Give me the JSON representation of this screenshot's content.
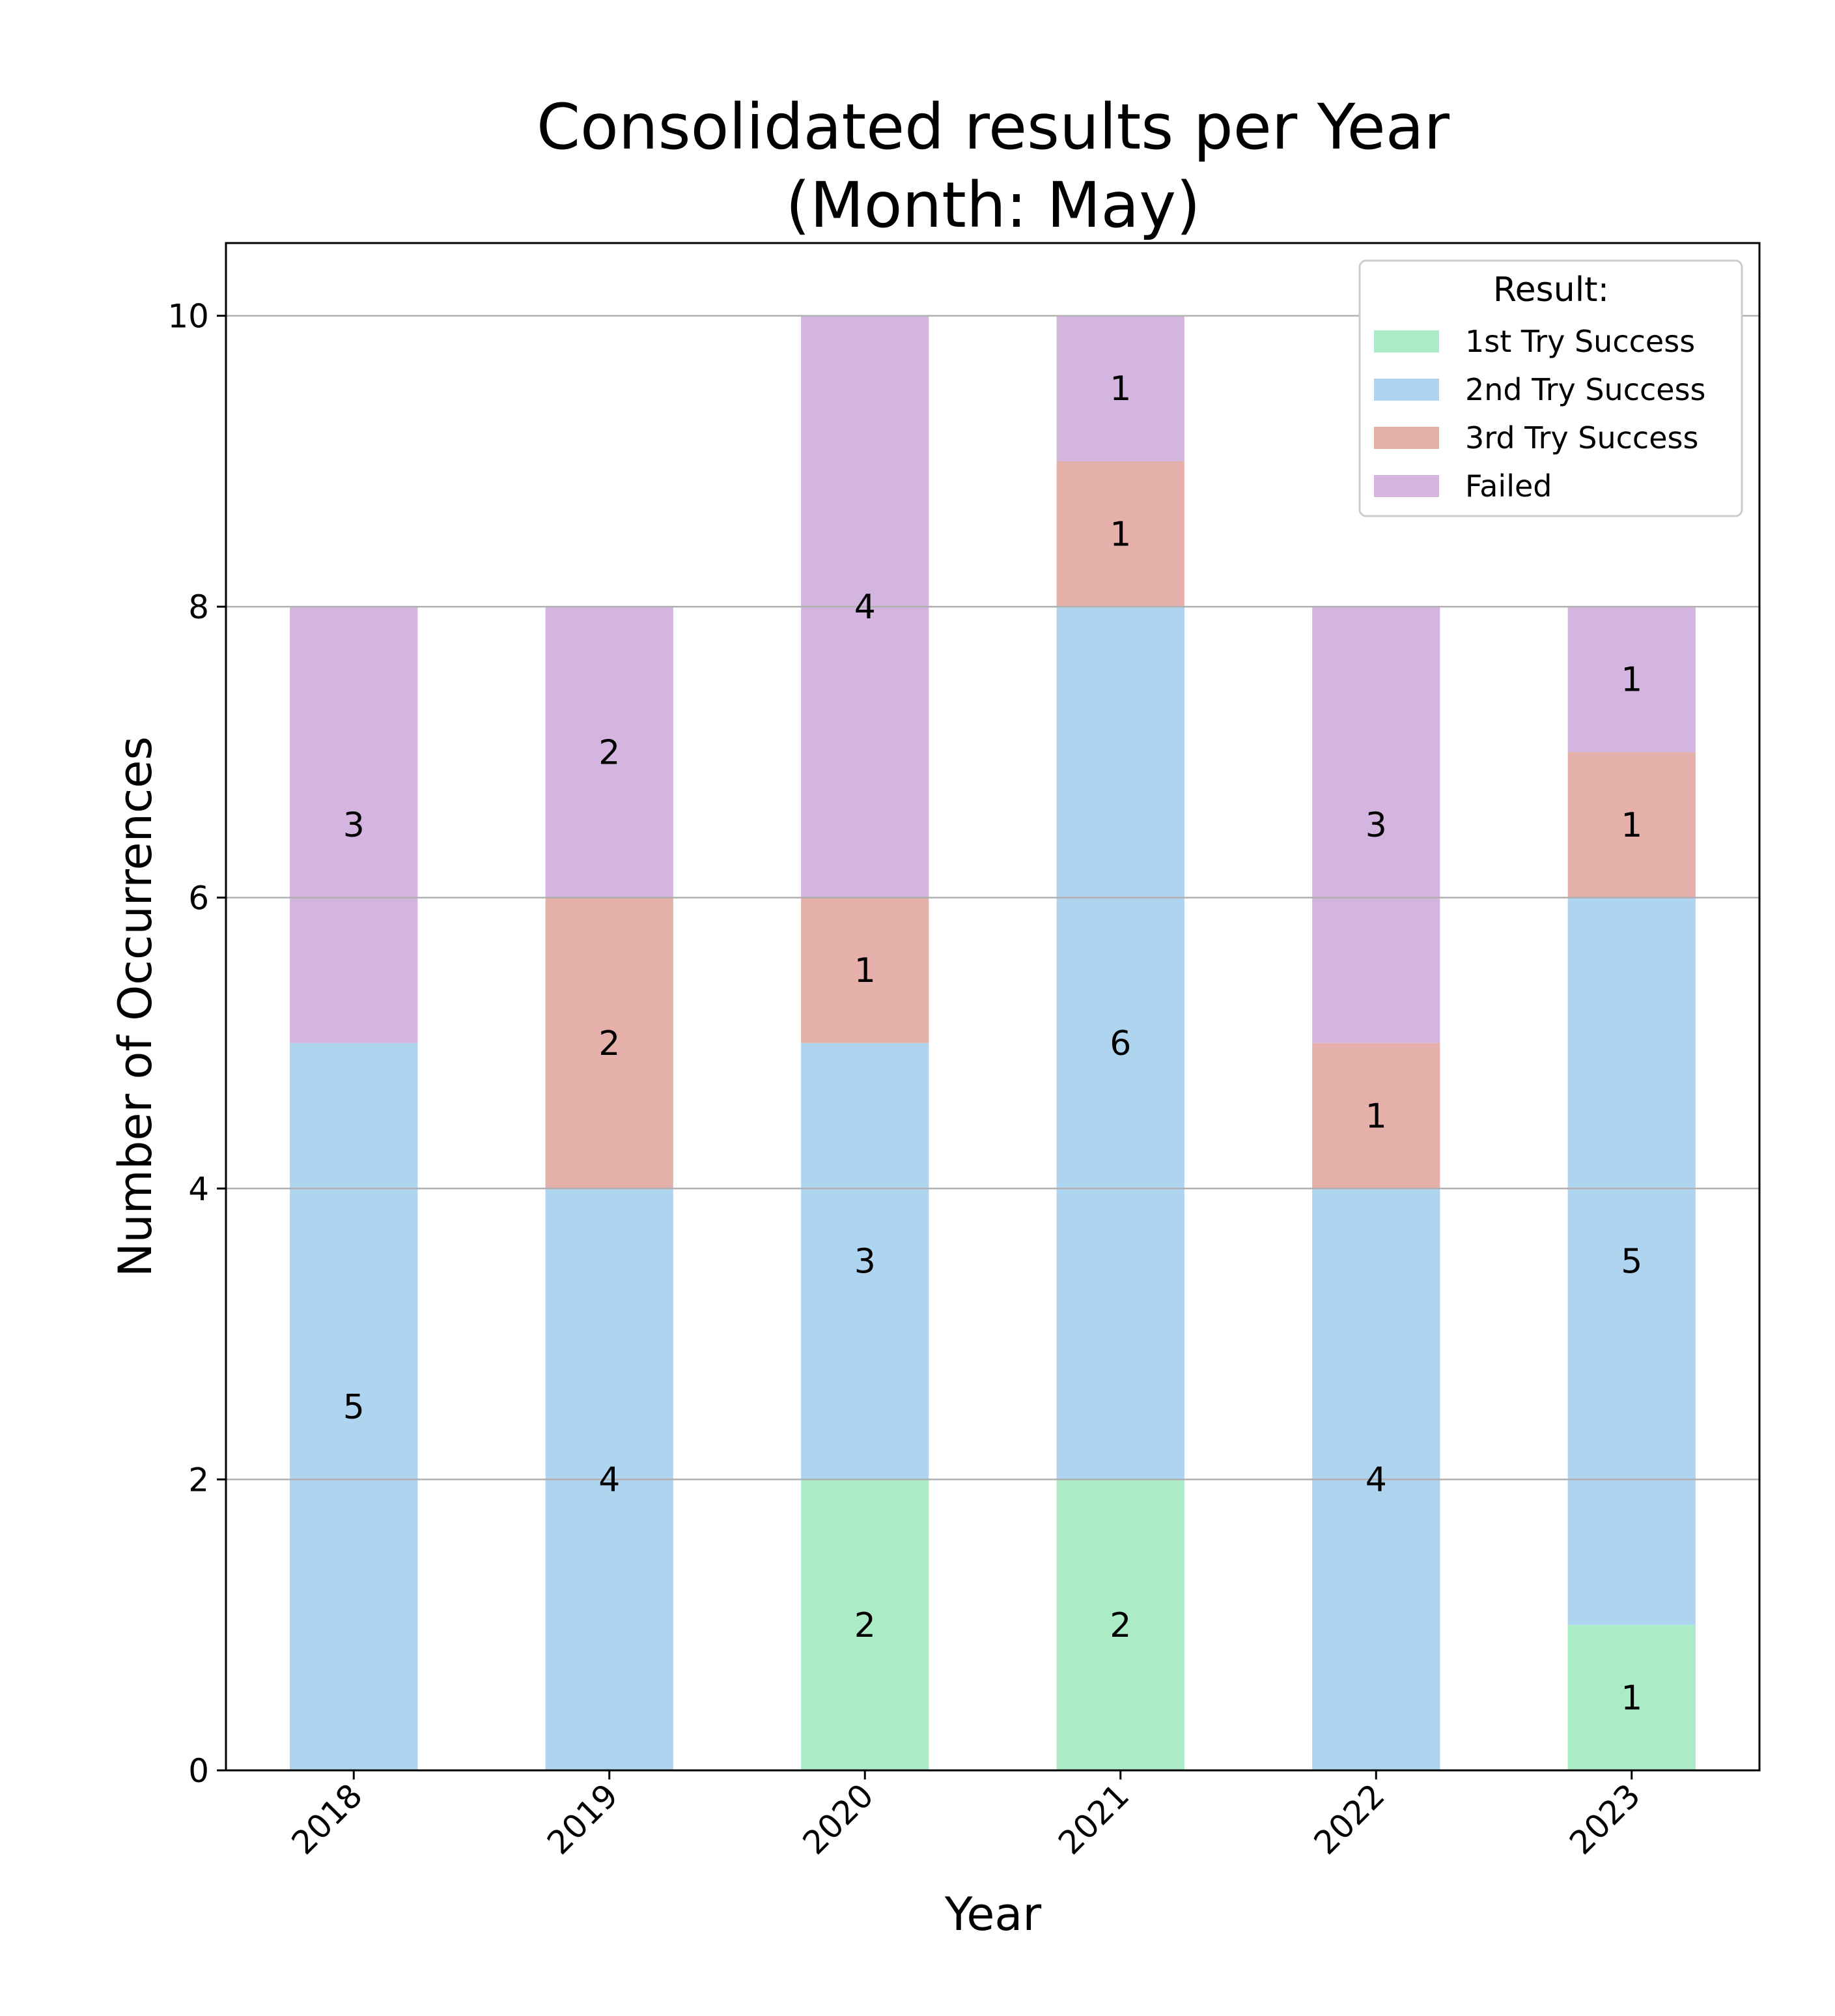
{
  "chart_data": {
    "type": "bar",
    "stacked": true,
    "title": [
      "Consolidated results per Year",
      "(Month: May)"
    ],
    "xlabel": "Year",
    "ylabel": "Number of Occurrences",
    "categories": [
      "2018",
      "2019",
      "2020",
      "2021",
      "2022",
      "2023"
    ],
    "ylim": [
      0,
      10.5
    ],
    "yticks": [
      0,
      2,
      4,
      6,
      8,
      10
    ],
    "grid": "horizontal",
    "legend": {
      "title": "Result:",
      "placement": "top-right"
    },
    "series": [
      {
        "name": "1st Try Success",
        "color": "#abebc6",
        "values": [
          0,
          0,
          2,
          2,
          0,
          1
        ]
      },
      {
        "name": "2nd Try Success",
        "color": "#aed4ef",
        "values": [
          5,
          4,
          3,
          6,
          4,
          5
        ]
      },
      {
        "name": "3rd Try Success",
        "color": "#e6b0aa",
        "values": [
          0,
          2,
          1,
          1,
          1,
          1
        ]
      },
      {
        "name": "Failed",
        "color": "#d3b5df",
        "values": [
          3,
          2,
          4,
          1,
          3,
          1
        ]
      }
    ]
  }
}
